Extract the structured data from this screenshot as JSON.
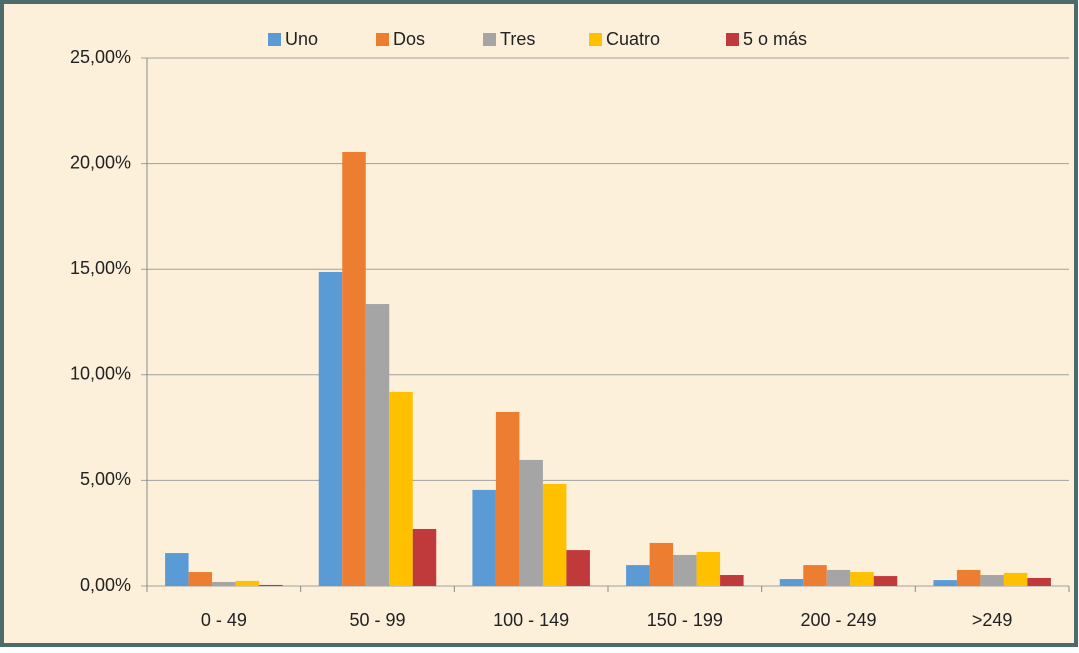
{
  "chart_data": {
    "type": "bar",
    "categories": [
      "0 - 49",
      "50 - 99",
      "100 - 149",
      "150 - 199",
      "200 - 249",
      ">249"
    ],
    "series": [
      {
        "name": "Uno",
        "color": "#5b9bd5",
        "values": [
          1.56,
          14.87,
          4.55,
          0.99,
          0.33,
          0.28
        ]
      },
      {
        "name": "Dos",
        "color": "#ed7d31",
        "values": [
          0.66,
          20.55,
          8.24,
          2.04,
          0.99,
          0.76
        ]
      },
      {
        "name": "Tres",
        "color": "#a5a5a5",
        "values": [
          0.19,
          13.35,
          5.97,
          1.47,
          0.76,
          0.52
        ]
      },
      {
        "name": "Cuatro",
        "color": "#ffc000",
        "values": [
          0.24,
          9.19,
          4.83,
          1.61,
          0.66,
          0.62
        ]
      },
      {
        "name": "5 o más",
        "color": "#c0393b",
        "values": [
          0.05,
          2.7,
          1.7,
          0.52,
          0.47,
          0.38
        ]
      }
    ],
    "ylim": [
      0,
      25
    ],
    "yticks": [
      {
        "value": 0,
        "label": "0,00%"
      },
      {
        "value": 5,
        "label": "5,00%"
      },
      {
        "value": 10,
        "label": "10,00%"
      },
      {
        "value": 15,
        "label": "15,00%"
      },
      {
        "value": 20,
        "label": "20,00%"
      },
      {
        "value": 25,
        "label": "25,00%"
      }
    ],
    "grid": true,
    "legend": "top"
  }
}
